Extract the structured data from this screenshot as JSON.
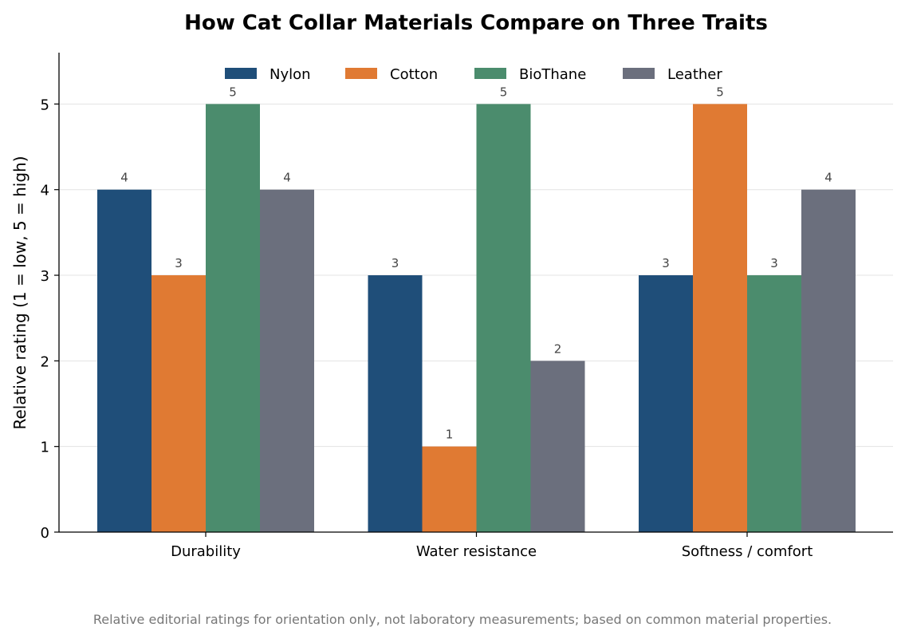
{
  "chart_data": {
    "type": "bar",
    "title": "How Cat Collar Materials Compare on Three Traits",
    "xlabel": "",
    "ylabel": "Relative rating (1 = low, 5 = high)",
    "categories": [
      "Durability",
      "Water resistance",
      "Softness / comfort"
    ],
    "series": [
      {
        "name": "Nylon",
        "color": "#1f4e79",
        "values": [
          4,
          3,
          3
        ]
      },
      {
        "name": "Cotton",
        "color": "#e07a33",
        "values": [
          3,
          1,
          5
        ]
      },
      {
        "name": "BioThane",
        "color": "#4b8c6d",
        "values": [
          5,
          5,
          3
        ]
      },
      {
        "name": "Leather",
        "color": "#6b6f7d",
        "values": [
          4,
          2,
          4
        ]
      }
    ],
    "ylim": [
      0,
      5.6
    ],
    "yticks": [
      0,
      1,
      2,
      3,
      4,
      5
    ],
    "grid": "horizontal",
    "legend": "top-center",
    "data_labels": true,
    "caption": "Relative editorial ratings for orientation only, not laboratory measurements; based on common material properties."
  }
}
